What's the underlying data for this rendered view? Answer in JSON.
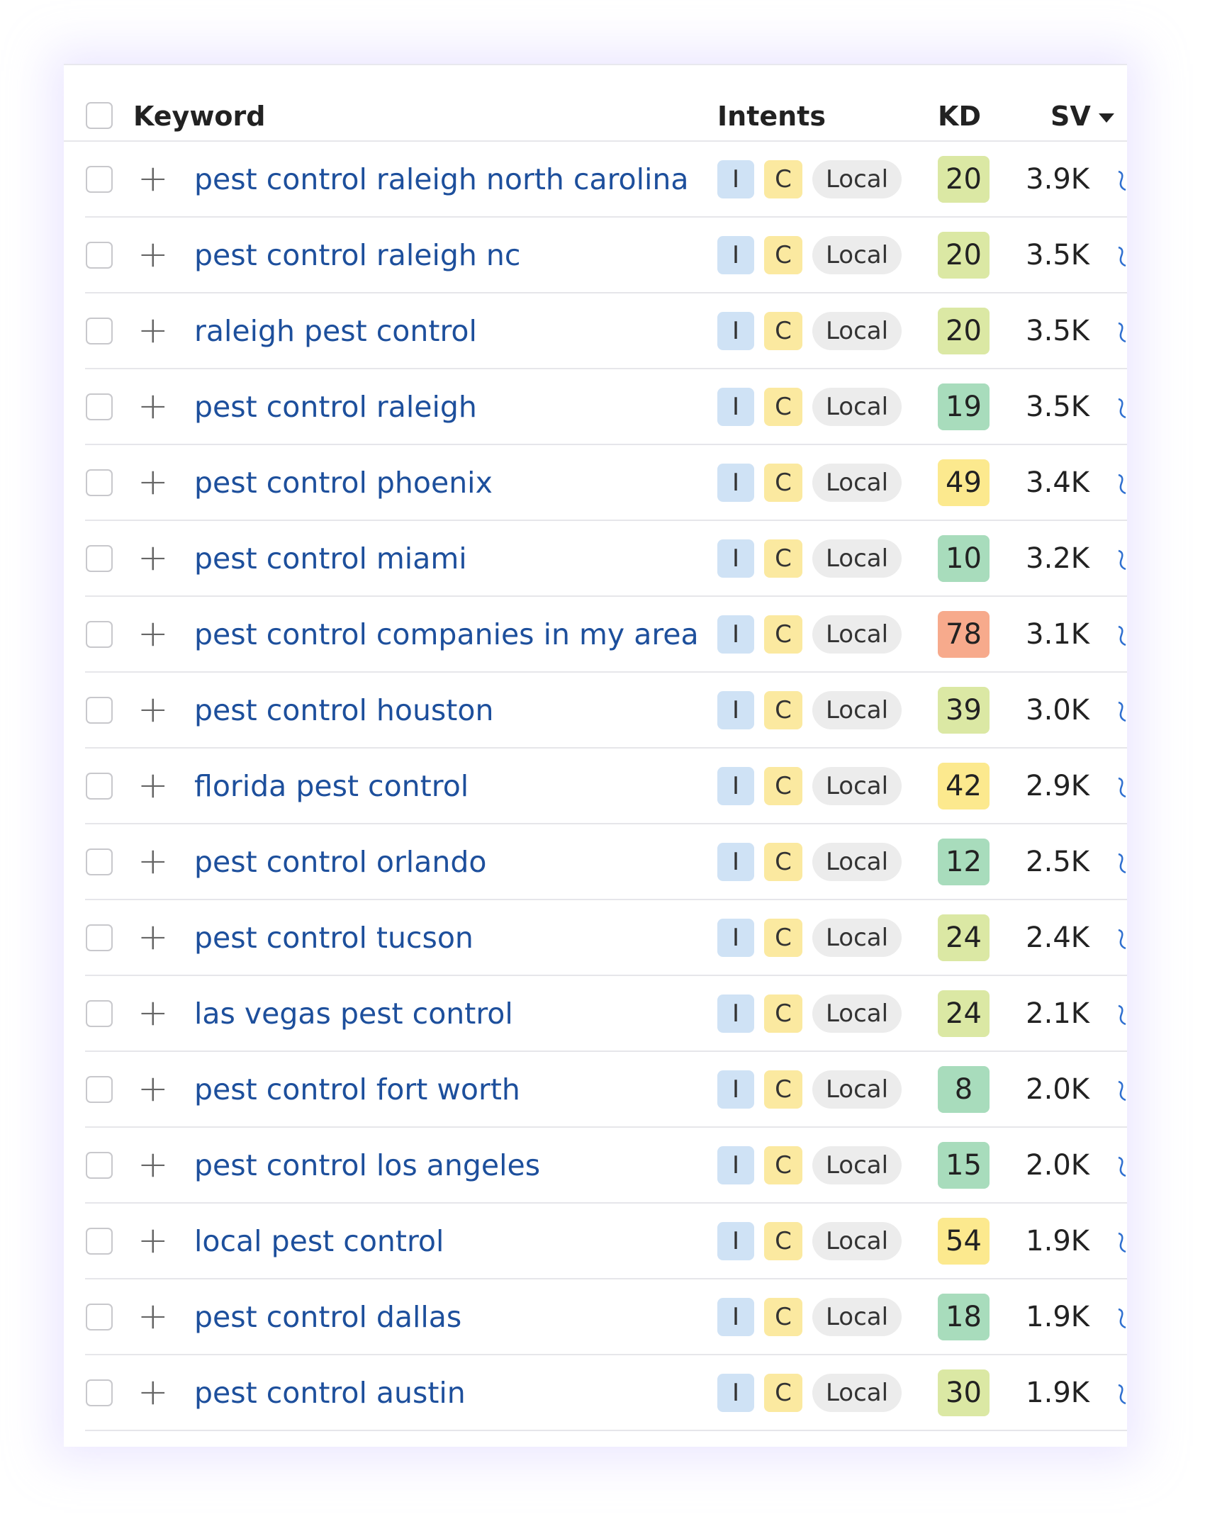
{
  "header": {
    "keyword": "Keyword",
    "intents": "Intents",
    "kd": "KD",
    "sv": "SV"
  },
  "rows": [
    {
      "keyword": "pest control raleigh north carolina",
      "intents": [
        "I",
        "C",
        "Local"
      ],
      "kd": 20,
      "sv": "3.9K"
    },
    {
      "keyword": "pest control raleigh nc",
      "intents": [
        "I",
        "C",
        "Local"
      ],
      "kd": 20,
      "sv": "3.5K"
    },
    {
      "keyword": "raleigh pest control",
      "intents": [
        "I",
        "C",
        "Local"
      ],
      "kd": 20,
      "sv": "3.5K"
    },
    {
      "keyword": "pest control raleigh",
      "intents": [
        "I",
        "C",
        "Local"
      ],
      "kd": 19,
      "sv": "3.5K"
    },
    {
      "keyword": "pest control phoenix",
      "intents": [
        "I",
        "C",
        "Local"
      ],
      "kd": 49,
      "sv": "3.4K"
    },
    {
      "keyword": "pest control miami",
      "intents": [
        "I",
        "C",
        "Local"
      ],
      "kd": 10,
      "sv": "3.2K"
    },
    {
      "keyword": "pest control companies in my area",
      "intents": [
        "I",
        "C",
        "Local"
      ],
      "kd": 78,
      "sv": "3.1K"
    },
    {
      "keyword": "pest control houston",
      "intents": [
        "I",
        "C",
        "Local"
      ],
      "kd": 39,
      "sv": "3.0K"
    },
    {
      "keyword": "florida pest control",
      "intents": [
        "I",
        "C",
        "Local"
      ],
      "kd": 42,
      "sv": "2.9K"
    },
    {
      "keyword": "pest control orlando",
      "intents": [
        "I",
        "C",
        "Local"
      ],
      "kd": 12,
      "sv": "2.5K"
    },
    {
      "keyword": "pest control tucson",
      "intents": [
        "I",
        "C",
        "Local"
      ],
      "kd": 24,
      "sv": "2.4K"
    },
    {
      "keyword": "las vegas pest control",
      "intents": [
        "I",
        "C",
        "Local"
      ],
      "kd": 24,
      "sv": "2.1K"
    },
    {
      "keyword": "pest control fort worth",
      "intents": [
        "I",
        "C",
        "Local"
      ],
      "kd": 8,
      "sv": "2.0K"
    },
    {
      "keyword": "pest control los angeles",
      "intents": [
        "I",
        "C",
        "Local"
      ],
      "kd": 15,
      "sv": "2.0K"
    },
    {
      "keyword": "local pest control",
      "intents": [
        "I",
        "C",
        "Local"
      ],
      "kd": 54,
      "sv": "1.9K"
    },
    {
      "keyword": "pest control dallas",
      "intents": [
        "I",
        "C",
        "Local"
      ],
      "kd": 18,
      "sv": "1.9K"
    },
    {
      "keyword": "pest control austin",
      "intents": [
        "I",
        "C",
        "Local"
      ],
      "kd": 30,
      "sv": "1.9K"
    }
  ]
}
